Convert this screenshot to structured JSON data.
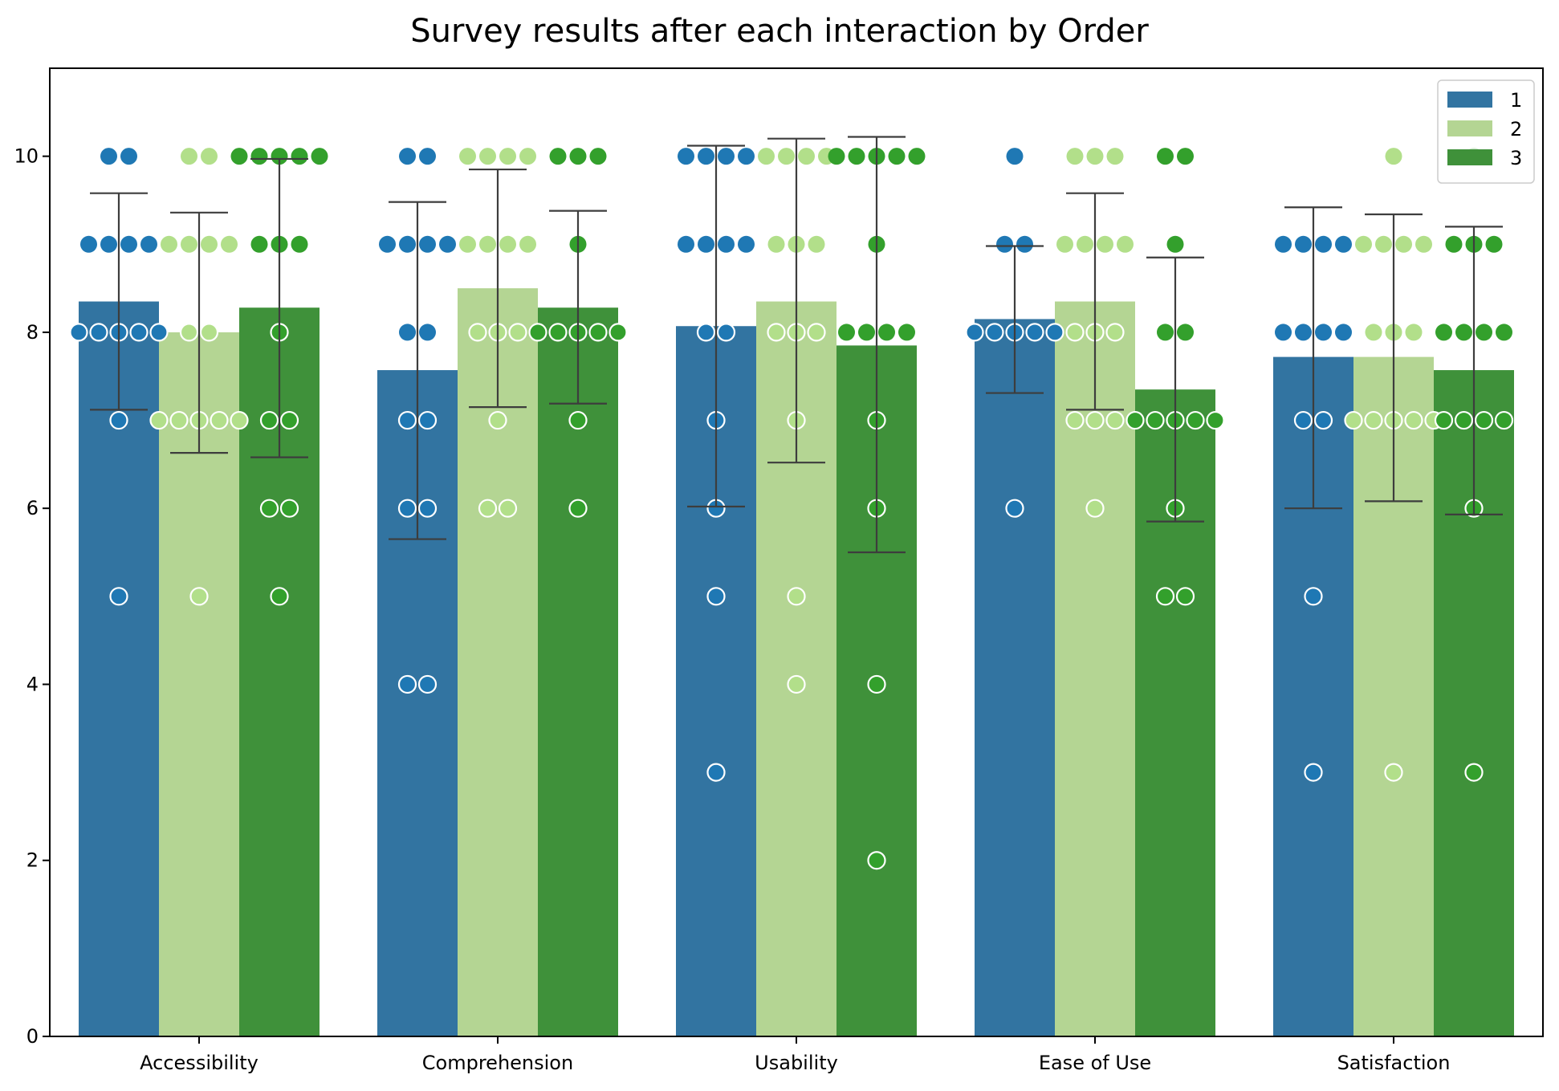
{
  "chart_data": {
    "type": "bar",
    "title": "Survey results after each interaction by Order",
    "xlabel": "",
    "ylabel": "",
    "ylim": [
      0,
      11
    ],
    "yticks": [
      0,
      2,
      4,
      6,
      8,
      10
    ],
    "categories": [
      "Accessibility",
      "Comprehension",
      "Usability",
      "Ease of Use",
      "Satisfaction"
    ],
    "legend_position": "top-right",
    "grid": false,
    "series": [
      {
        "name": "1",
        "bar_color": "#3274a1",
        "point_color": "#1f78b4",
        "values": [
          8.35,
          7.57,
          8.07,
          8.15,
          7.72
        ],
        "error_low": [
          7.12,
          5.65,
          6.02,
          7.31,
          6.0
        ],
        "error_high": [
          9.58,
          9.48,
          10.12,
          8.98,
          9.42
        ],
        "points": [
          [
            10,
            10,
            9,
            9,
            9,
            9,
            8,
            8,
            8,
            8,
            8,
            7,
            5
          ],
          [
            10,
            10,
            9,
            9,
            9,
            9,
            8,
            8,
            7,
            7,
            6,
            6,
            4,
            4
          ],
          [
            10,
            10,
            10,
            10,
            9,
            9,
            9,
            9,
            8,
            8,
            7,
            6,
            5,
            3
          ],
          [
            10,
            9,
            9,
            8,
            8,
            8,
            8,
            8,
            6
          ],
          [
            9,
            9,
            9,
            9,
            8,
            8,
            8,
            8,
            7,
            7,
            5,
            3
          ]
        ]
      },
      {
        "name": "2",
        "bar_color": "#b4d593",
        "point_color": "#b2df8a",
        "values": [
          8.0,
          8.5,
          8.35,
          8.35,
          7.72
        ],
        "error_low": [
          6.63,
          7.15,
          6.52,
          7.12,
          6.08
        ],
        "error_high": [
          9.36,
          9.85,
          10.2,
          9.58,
          9.34
        ],
        "points": [
          [
            10,
            10,
            9,
            9,
            9,
            9,
            8,
            8,
            7,
            7,
            7,
            7,
            7,
            5
          ],
          [
            10,
            10,
            10,
            10,
            9,
            9,
            9,
            9,
            8,
            8,
            8,
            7,
            6,
            6
          ],
          [
            10,
            10,
            10,
            10,
            9,
            9,
            9,
            8,
            8,
            8,
            7,
            5,
            4
          ],
          [
            10,
            10,
            10,
            9,
            9,
            9,
            9,
            8,
            8,
            8,
            7,
            7,
            7,
            6
          ],
          [
            10,
            9,
            9,
            9,
            9,
            8,
            8,
            8,
            7,
            7,
            7,
            7,
            7,
            3
          ]
        ]
      },
      {
        "name": "3",
        "bar_color": "#3f913a",
        "point_color": "#33a02c",
        "values": [
          8.28,
          8.28,
          7.85,
          7.35,
          7.57
        ],
        "error_low": [
          6.58,
          7.19,
          5.5,
          5.85,
          5.93
        ],
        "error_high": [
          9.97,
          9.38,
          10.22,
          8.85,
          9.2
        ],
        "points": [
          [
            10,
            10,
            10,
            10,
            10,
            9,
            9,
            9,
            8,
            7,
            7,
            6,
            6,
            5
          ],
          [
            10,
            10,
            10,
            9,
            8,
            8,
            8,
            8,
            8,
            7,
            6
          ],
          [
            10,
            10,
            10,
            10,
            10,
            9,
            8,
            8,
            8,
            8,
            7,
            6,
            4,
            2
          ],
          [
            10,
            10,
            9,
            8,
            8,
            7,
            7,
            7,
            7,
            7,
            6,
            5,
            5
          ],
          [
            10,
            9,
            9,
            9,
            8,
            8,
            8,
            8,
            7,
            7,
            7,
            7,
            6,
            3
          ]
        ]
      }
    ]
  }
}
